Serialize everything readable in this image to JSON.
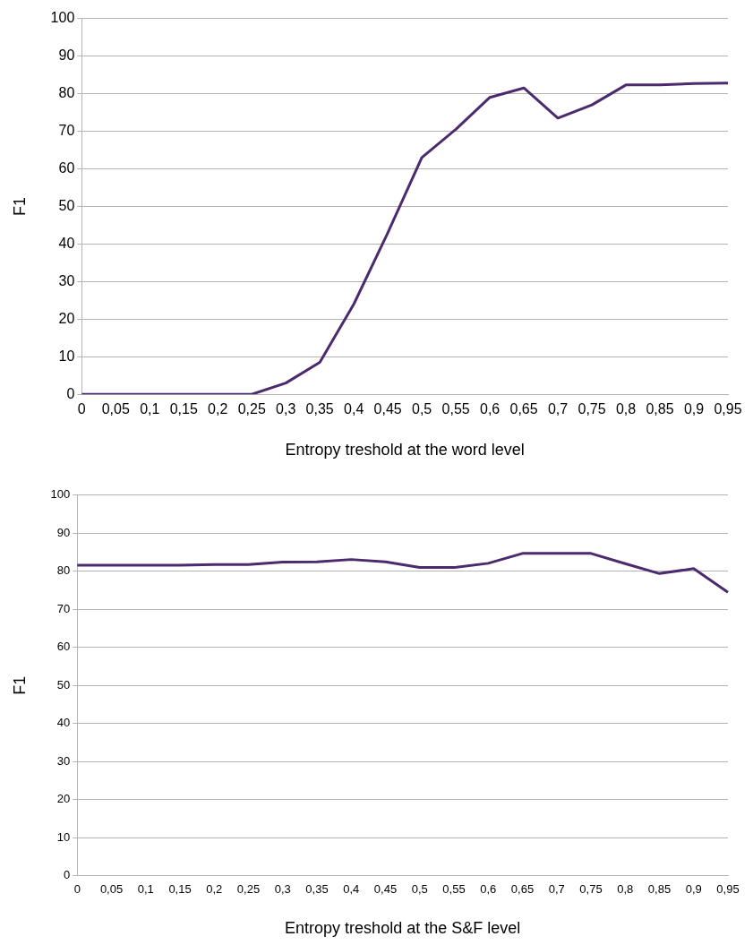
{
  "chart_data": [
    {
      "type": "line",
      "xlabel": "Entropy treshold at the word level",
      "ylabel": "F1",
      "categories": [
        "0",
        "0,05",
        "0,1",
        "0,15",
        "0,2",
        "0,25",
        "0,3",
        "0,35",
        "0,4",
        "0,45",
        "0,5",
        "0,55",
        "0,6",
        "0,65",
        "0,7",
        "0,75",
        "0,8",
        "0,85",
        "0,9",
        "0,95"
      ],
      "series": [
        {
          "color": "#4b2a6e",
          "values": [
            0,
            0,
            0,
            0,
            0,
            0,
            3,
            8.5,
            24,
            43,
            63,
            70.5,
            79,
            81.5,
            73.5,
            77,
            82.3,
            82.3,
            82.7,
            82.8
          ]
        }
      ],
      "ylim": [
        0,
        100
      ],
      "yticks": [
        0,
        10,
        20,
        30,
        40,
        50,
        60,
        70,
        80,
        90,
        100
      ],
      "grid": "y",
      "legend": false,
      "marker": "none"
    },
    {
      "type": "line",
      "xlabel": "Entropy treshold at the S&F level",
      "ylabel": "F1",
      "categories": [
        "0",
        "0,05",
        "0,1",
        "0,15",
        "0,2",
        "0,25",
        "0,3",
        "0,35",
        "0,4",
        "0,45",
        "0,5",
        "0,55",
        "0,6",
        "0,65",
        "0,7",
        "0,75",
        "0,8",
        "0,85",
        "0,9",
        "0,95"
      ],
      "series": [
        {
          "color": "#4b2a6e",
          "values": [
            81.6,
            81.6,
            81.6,
            81.6,
            81.8,
            81.8,
            82.4,
            82.5,
            83.1,
            82.5,
            81.0,
            81.0,
            82.1,
            84.7,
            84.7,
            84.7,
            82.0,
            79.4,
            80.7,
            74.5
          ]
        }
      ],
      "ylim": [
        0,
        100
      ],
      "yticks": [
        0,
        10,
        20,
        30,
        40,
        50,
        60,
        70,
        80,
        90,
        100
      ],
      "grid": "y",
      "legend": false,
      "marker": "none"
    }
  ]
}
